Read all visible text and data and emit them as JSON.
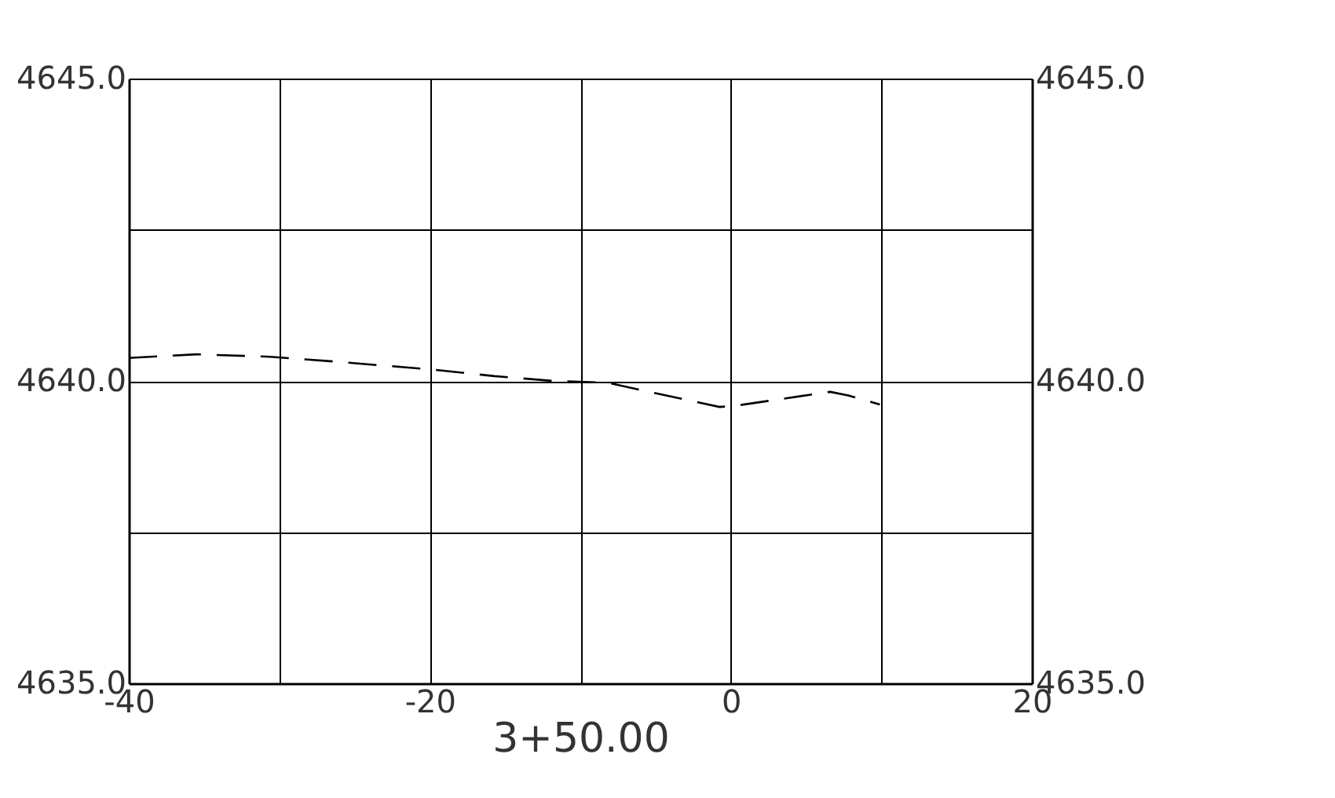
{
  "chart_data": {
    "type": "line",
    "xlabel": "3+50.00",
    "xlim": [
      -40,
      20
    ],
    "xticks": [
      -40,
      {
        "value": -30,
        "label": null
      },
      -20,
      {
        "value": -10,
        "label": null
      },
      0,
      {
        "value": 10,
        "label": null
      },
      20
    ],
    "ylim": [
      4635,
      4645
    ],
    "yticks": [
      {
        "value": 4635,
        "label": "4635.0"
      },
      {
        "value": 4637.5,
        "label": null
      },
      {
        "value": 4640,
        "label": "4640.0"
      },
      {
        "value": 4642.5,
        "label": null
      },
      {
        "value": 4645,
        "label": "4645.0"
      }
    ],
    "y2lim": [
      4635,
      4645
    ],
    "y2ticks": [
      {
        "value": 4635,
        "label": "4635.0"
      },
      {
        "value": 4640,
        "label": "4640.0"
      },
      {
        "value": 4645,
        "label": "4645.0"
      }
    ],
    "grid": true,
    "line_style": "dashed",
    "marker": "none",
    "series": [
      {
        "color": "#000000",
        "x": [
          -40,
          -35.5,
          -30.6,
          -26.8,
          -19.9,
          -15.7,
          -11.8,
          -8.2,
          -0.75,
          0.3,
          6.6,
          7.8,
          9.9
        ],
        "values": [
          4640.38,
          4640.44,
          4640.4,
          4640.33,
          4640.19,
          4640.08,
          4640.0,
          4639.97,
          4639.57,
          4639.59,
          4639.82,
          4639.76,
          4639.61
        ]
      }
    ]
  }
}
